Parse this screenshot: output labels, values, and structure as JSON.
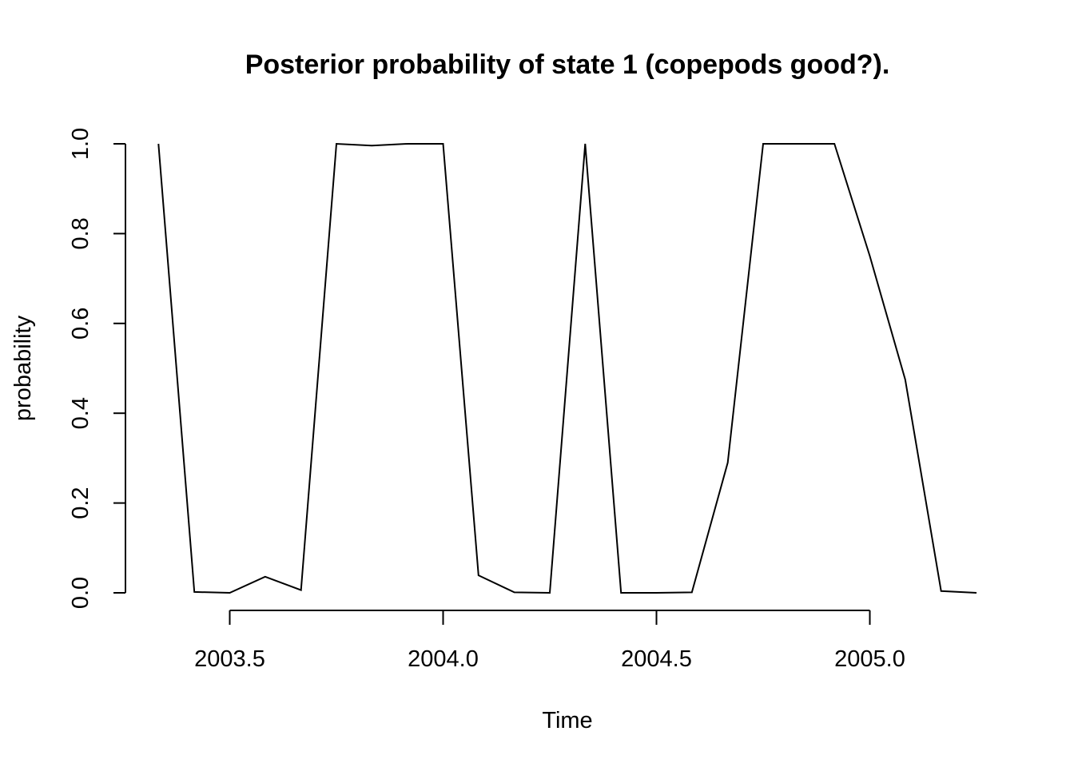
{
  "chart_data": {
    "type": "line",
    "title": "Posterior probability of state 1 (copepods good?).",
    "xlabel": "Time",
    "ylabel": "probability",
    "xlim": [
      2003.25,
      2005.25
    ],
    "ylim": [
      0,
      1
    ],
    "xticks": [
      2003.5,
      2004.0,
      2004.5,
      2005.0
    ],
    "xtick_labels": [
      "2003.5",
      "2004.0",
      "2004.5",
      "2005.0"
    ],
    "yticks": [
      0,
      0.2,
      0.4,
      0.6,
      0.8,
      1.0
    ],
    "ytick_labels": [
      "0.0",
      "0.2",
      "0.4",
      "0.6",
      "0.8",
      "1.0"
    ],
    "grid": false,
    "line_color": "#000000",
    "x": [
      2003.333,
      2003.417,
      2003.5,
      2003.583,
      2003.667,
      2003.75,
      2003.833,
      2003.917,
      2004.0,
      2004.083,
      2004.167,
      2004.25,
      2004.333,
      2004.417,
      2004.5,
      2004.583,
      2004.667,
      2004.75,
      2004.833,
      2004.917,
      2005.0,
      2005.083,
      2005.167,
      2005.25
    ],
    "values": [
      1.0,
      0.002,
      0.0,
      0.036,
      0.006,
      1.0,
      0.996,
      1.0,
      1.0,
      0.039,
      0.001,
      0.0,
      1.0,
      0.0,
      0.0,
      0.001,
      0.29,
      1.0,
      1.0,
      1.0,
      0.75,
      0.475,
      0.004,
      0.0
    ]
  }
}
